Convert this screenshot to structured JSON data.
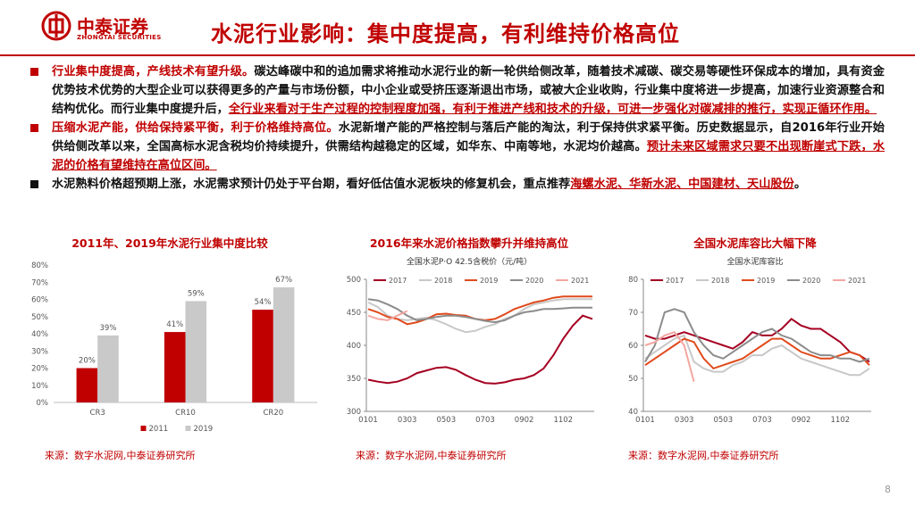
{
  "header": {
    "logo": "中泰证券",
    "logo_sub": "ZHONGTAI SECURITIES",
    "title": "水泥行业影响：集中度提高，有利维持价格高位"
  },
  "bullets": [
    [
      "行业集中度提高，产线技术有望升级。",
      "碳达峰碳中和的追加需求将推动水泥行业的新一轮供给侧改革，随着技术减碳、碳交易等硬性环保成本的增加，具有资金优势技术优势的大型企业可以获得更多的产量与市场份额，中小企业或受挤压逐渐退出市场，或被大企业收购，行业集中度将进一步提高，加速行业资源整合和结构优化。而行业集中度提升后，",
      "全行业来看对于生产过程的控制程度加强，有利于推进产线和技术的升级，可进一步强化对碳减排的推行，实现正循环作用。"
    ],
    [
      "压缩水泥产能，供给保持紧平衡，利于价格维持高位。",
      "水泥新增产能的严格控制与落后产能的淘汰，利于保持供求紧平衡。历史数据显示，自2016年行业开始供给侧改革以来，全国高标水泥含税均价持续提升，供需结构越稳定的区域，如华东、中南等地，水泥均价越高。",
      "预计未来区域需求只要不出现断崖式下跌，水泥的价格有望维持在高位区间。"
    ],
    [
      "水泥熟料价格超预期上涨，水泥需求预计仍处于平台期，看好低估值水泥板块的修复机会，重点推荐",
      "海螺水泥、华新水泥、中国建材、天山股份",
      "。"
    ]
  ],
  "chart_data": [
    {
      "type": "bar",
      "title": "2011年、2019年水泥行业集中度比较",
      "categories": [
        "CR3",
        "CR10",
        "CR20"
      ],
      "series": [
        {
          "name": "2011",
          "color": "#c00000",
          "values": [
            20,
            41,
            54
          ],
          "value_labels": [
            "20%",
            "41%",
            "54%"
          ]
        },
        {
          "name": "2019",
          "color": "#c9c9c9",
          "values": [
            39,
            59,
            67
          ],
          "value_labels": [
            "39%",
            "59%",
            "67%"
          ]
        }
      ],
      "ylim": [
        0,
        80
      ],
      "yticks": [
        {
          "value": 0,
          "label": "0%"
        },
        {
          "value": 10,
          "label": "10%"
        },
        {
          "value": 20,
          "label": "20%"
        },
        {
          "value": 30,
          "label": "30%"
        },
        {
          "value": 40,
          "label": "40%"
        },
        {
          "value": 50,
          "label": "50%"
        },
        {
          "value": 60,
          "label": "60%"
        },
        {
          "value": 70,
          "label": "70%"
        },
        {
          "value": 80,
          "label": "80%"
        }
      ],
      "grid": false,
      "legend": "bottom",
      "source": "来源：数字水泥网,中泰证券研究所"
    },
    {
      "type": "line",
      "title": "2016年来水泥价格指数攀升并维持高位",
      "subtitle": "全国水泥P·O 42.5含税价（元/吨）",
      "categories": [
        "0101",
        null,
        null,
        null,
        "0303",
        null,
        null,
        null,
        "0503",
        null,
        null,
        null,
        "0703",
        null,
        null,
        null,
        "0902",
        null,
        null,
        null,
        "1102",
        null,
        null,
        null
      ],
      "series": [
        {
          "name": "2017",
          "color": "#a50021",
          "values": [
            348,
            345,
            343,
            345,
            350,
            358,
            362,
            366,
            367,
            363,
            355,
            348,
            343,
            342,
            344,
            348,
            350,
            355,
            365,
            385,
            410,
            430,
            445,
            440
          ]
        },
        {
          "name": "2018",
          "color": "#c8c8c8",
          "values": [
            465,
            458,
            445,
            440,
            438,
            440,
            442,
            438,
            432,
            425,
            420,
            422,
            428,
            432,
            440,
            445,
            455,
            462,
            465,
            468,
            470,
            470,
            470,
            470
          ]
        },
        {
          "name": "2019",
          "color": "#e04a1c",
          "values": [
            455,
            450,
            443,
            440,
            432,
            435,
            440,
            447,
            448,
            446,
            445,
            440,
            438,
            440,
            447,
            455,
            460,
            465,
            468,
            472,
            474,
            474,
            474,
            474
          ]
        },
        {
          "name": "2020",
          "color": "#8c8c8c",
          "values": [
            470,
            468,
            462,
            455,
            445,
            438,
            440,
            443,
            445,
            445,
            443,
            440,
            437,
            435,
            438,
            445,
            450,
            452,
            455,
            455,
            456,
            457,
            457,
            457
          ]
        },
        {
          "name": "2021",
          "color": "#f4a6a0",
          "values": [
            445,
            440,
            438,
            445,
            452,
            null,
            null,
            null,
            null,
            null,
            null,
            null,
            null,
            null,
            null,
            null,
            null,
            null,
            null,
            null,
            null,
            null,
            null,
            null
          ]
        }
      ],
      "ylim": [
        300,
        500
      ],
      "yticks": [
        300,
        350,
        400,
        450,
        500
      ],
      "grid": false,
      "legend": "top",
      "source": "来源：数字水泥网,中泰证券研究所"
    },
    {
      "type": "line",
      "title": "全国水泥库容比大幅下降",
      "subtitle": "全国水泥库容比",
      "categories": [
        "0101",
        null,
        null,
        null,
        "0303",
        null,
        null,
        null,
        "0503",
        null,
        null,
        null,
        "0703",
        null,
        null,
        null,
        "0902",
        null,
        null,
        null,
        "1102",
        null,
        null,
        null
      ],
      "series": [
        {
          "name": "2017",
          "color": "#a50021",
          "values": [
            63,
            62,
            62,
            63,
            64,
            63,
            62,
            61,
            60,
            59,
            61,
            64,
            63,
            63,
            65,
            68,
            66,
            65,
            65,
            63,
            61,
            58,
            57,
            55
          ]
        },
        {
          "name": "2018",
          "color": "#c8c8c8",
          "values": [
            56,
            58,
            60,
            62,
            63,
            55,
            53,
            52,
            52,
            54,
            55,
            57,
            57,
            59,
            60,
            58,
            56,
            55,
            54,
            53,
            52,
            51,
            51,
            53
          ]
        },
        {
          "name": "2019",
          "color": "#e04a1c",
          "values": [
            54,
            56,
            58,
            60,
            62,
            61,
            56,
            53,
            54,
            55,
            56,
            58,
            60,
            62,
            62,
            60,
            58,
            57,
            56,
            56,
            57,
            58,
            57,
            54
          ]
        },
        {
          "name": "2020",
          "color": "#8c8c8c",
          "values": [
            55,
            60,
            70,
            71,
            70,
            64,
            60,
            57,
            56,
            58,
            60,
            62,
            64,
            65,
            63,
            62,
            60,
            58,
            57,
            57,
            56,
            56,
            55,
            56
          ]
        },
        {
          "name": "2021",
          "color": "#f4a6a0",
          "values": [
            60,
            61,
            63,
            64,
            60,
            49,
            null,
            null,
            null,
            null,
            null,
            null,
            null,
            null,
            null,
            null,
            null,
            null,
            null,
            null,
            null,
            null,
            null,
            null
          ]
        }
      ],
      "ylim": [
        40,
        80
      ],
      "yticks": [
        40,
        50,
        60,
        70,
        80
      ],
      "grid": false,
      "legend": "top",
      "source": "来源：数字水泥网,中泰证券研究所"
    }
  ],
  "page_number": "8"
}
